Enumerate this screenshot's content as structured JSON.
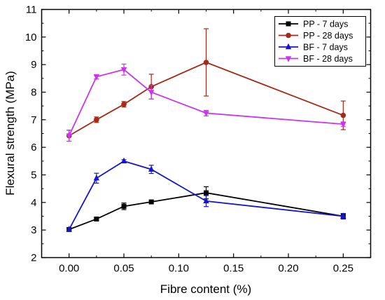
{
  "chart_data": {
    "type": "line",
    "title": "",
    "xlabel": "Fibre content (%)",
    "ylabel": "Flexural strength (MPa)",
    "xlim": [
      -0.025,
      0.275
    ],
    "ylim": [
      2,
      11
    ],
    "xticks": [
      "0.00",
      "0.05",
      "0.10",
      "0.15",
      "0.20",
      "0.25"
    ],
    "yticks": [
      "2",
      "3",
      "4",
      "5",
      "6",
      "7",
      "8",
      "9",
      "10",
      "11"
    ],
    "grid": false,
    "legend_position": "top-right",
    "series": [
      {
        "name": "PP - 7 days",
        "color": "#000000",
        "marker": "square",
        "x": [
          0.0,
          0.025,
          0.05,
          0.075,
          0.125,
          0.25
        ],
        "y": [
          3.02,
          3.4,
          3.86,
          4.02,
          4.35,
          3.5
        ],
        "error": [
          0.05,
          0.05,
          0.12,
          0.05,
          0.22,
          0.1
        ]
      },
      {
        "name": "PP - 28 days",
        "color": "#a52a1a",
        "marker": "circle",
        "x": [
          0.0,
          0.025,
          0.05,
          0.075,
          0.125,
          0.25
        ],
        "y": [
          6.42,
          7.0,
          7.56,
          8.2,
          9.08,
          7.16
        ],
        "error": [
          0.2,
          0.1,
          0.1,
          0.45,
          1.22,
          0.52
        ]
      },
      {
        "name": "BF - 7 days",
        "color": "#1515d0",
        "marker": "triangle-up",
        "x": [
          0.0,
          0.025,
          0.05,
          0.075,
          0.125,
          0.25
        ],
        "y": [
          3.02,
          4.88,
          5.5,
          5.2,
          4.05,
          3.5
        ],
        "error": [
          0.05,
          0.18,
          0.05,
          0.15,
          0.2,
          0.1
        ]
      },
      {
        "name": "BF - 28 days",
        "color": "#cc33ee",
        "marker": "triangle-down",
        "x": [
          0.0,
          0.025,
          0.05,
          0.075,
          0.125,
          0.25
        ],
        "y": [
          6.42,
          8.56,
          8.82,
          8.0,
          7.24,
          6.84
        ],
        "error": [
          0.2,
          0.08,
          0.2,
          0.25,
          0.1,
          0.08
        ]
      }
    ]
  }
}
